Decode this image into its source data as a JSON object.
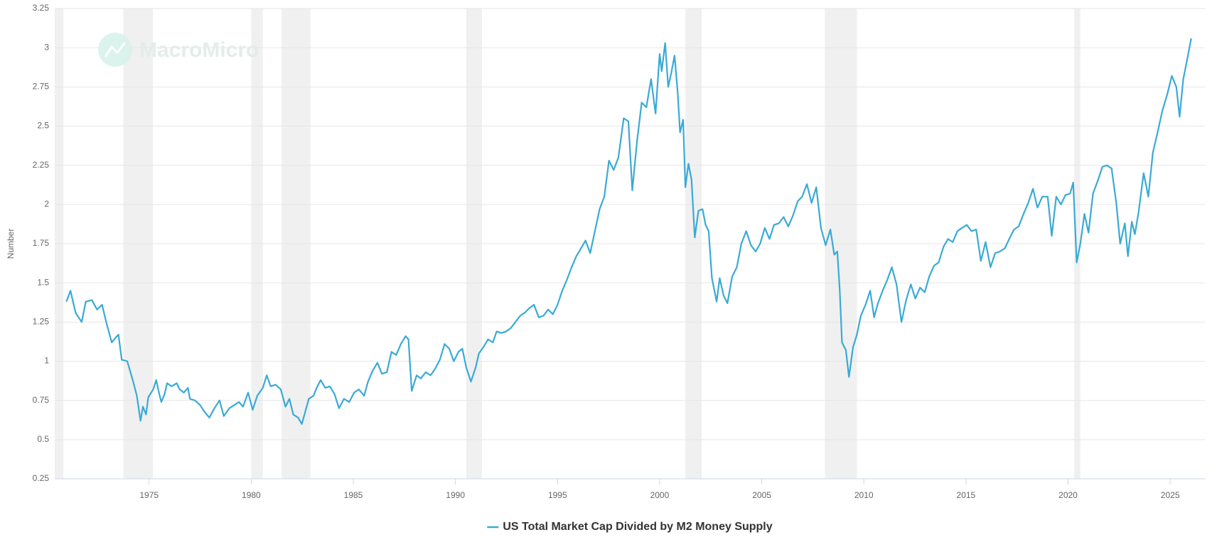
{
  "chart_data": {
    "type": "line",
    "watermark": "MacroMicro",
    "y_label": "Number",
    "x": [
      1970.95,
      1971.15,
      1971.4,
      1971.7,
      1971.9,
      1972.2,
      1972.45,
      1972.7,
      1972.9,
      1973.17,
      1973.36,
      1973.5,
      1973.66,
      1973.93,
      1974.2,
      1974.4,
      1974.58,
      1974.7,
      1974.85,
      1974.96,
      1975.2,
      1975.35,
      1975.5,
      1975.6,
      1975.76,
      1975.88,
      1976.1,
      1976.35,
      1976.5,
      1976.7,
      1976.9,
      1977.0,
      1977.25,
      1977.5,
      1977.7,
      1977.95,
      1978.2,
      1978.45,
      1978.66,
      1978.93,
      1979.16,
      1979.4,
      1979.6,
      1979.85,
      1980.07,
      1980.3,
      1980.57,
      1980.76,
      1980.95,
      1981.2,
      1981.45,
      1981.68,
      1981.87,
      1982.06,
      1982.3,
      1982.48,
      1982.63,
      1982.82,
      1983.05,
      1983.24,
      1983.4,
      1983.63,
      1983.85,
      1984.08,
      1984.3,
      1984.54,
      1984.8,
      1985.04,
      1985.27,
      1985.53,
      1985.72,
      1985.95,
      1986.18,
      1986.4,
      1986.64,
      1986.87,
      1987.1,
      1987.33,
      1987.56,
      1987.7,
      1987.86,
      1988.1,
      1988.3,
      1988.55,
      1988.78,
      1989.0,
      1989.24,
      1989.47,
      1989.7,
      1989.92,
      1990.15,
      1990.34,
      1990.53,
      1990.76,
      1990.99,
      1991.15,
      1991.37,
      1991.6,
      1991.83,
      1992.02,
      1992.25,
      1992.48,
      1992.7,
      1992.94,
      1993.17,
      1993.4,
      1993.63,
      1993.85,
      1994.08,
      1994.31,
      1994.54,
      1994.77,
      1995.0,
      1995.23,
      1995.46,
      1995.69,
      1995.92,
      1996.15,
      1996.37,
      1996.6,
      1996.83,
      1997.06,
      1997.29,
      1997.52,
      1997.75,
      1997.98,
      1998.24,
      1998.47,
      1998.66,
      1998.89,
      1999.12,
      1999.35,
      1999.58,
      1999.8,
      2000.0,
      2000.1,
      2000.27,
      2000.42,
      2000.57,
      2000.73,
      2000.88,
      2001.0,
      2001.15,
      2001.26,
      2001.41,
      2001.56,
      2001.72,
      2001.9,
      2002.1,
      2002.25,
      2002.4,
      2002.56,
      2002.79,
      2002.94,
      2003.13,
      2003.32,
      2003.55,
      2003.78,
      2004.0,
      2004.24,
      2004.47,
      2004.7,
      2004.92,
      2005.15,
      2005.38,
      2005.6,
      2005.84,
      2006.07,
      2006.3,
      2006.53,
      2006.76,
      2006.98,
      2007.21,
      2007.44,
      2007.67,
      2007.9,
      2008.13,
      2008.36,
      2008.55,
      2008.7,
      2008.82,
      2008.93,
      2009.12,
      2009.27,
      2009.47,
      2009.66,
      2009.85,
      2010.08,
      2010.31,
      2010.5,
      2010.69,
      2010.92,
      2011.15,
      2011.37,
      2011.6,
      2011.84,
      2012.07,
      2012.3,
      2012.52,
      2012.75,
      2012.98,
      2013.2,
      2013.44,
      2013.66,
      2013.9,
      2014.12,
      2014.35,
      2014.58,
      2014.8,
      2015.04,
      2015.27,
      2015.5,
      2015.73,
      2015.96,
      2016.2,
      2016.43,
      2016.66,
      2016.9,
      2017.12,
      2017.35,
      2017.58,
      2017.82,
      2018.05,
      2018.28,
      2018.5,
      2018.74,
      2019.0,
      2019.2,
      2019.42,
      2019.65,
      2019.87,
      2020.1,
      2020.25,
      2020.42,
      2020.6,
      2020.8,
      2021.0,
      2021.22,
      2021.45,
      2021.68,
      2021.9,
      2022.13,
      2022.36,
      2022.55,
      2022.78,
      2022.93,
      2023.12,
      2023.27,
      2023.45,
      2023.7,
      2023.93,
      2024.15,
      2024.4,
      2024.62,
      2024.85,
      2025.08,
      2025.3,
      2025.46,
      2025.64,
      2025.84,
      2026.03
    ],
    "series": [
      {
        "name": "US Total Market Cap Divided by M2 Money Supply",
        "color": "#3aaad6",
        "values": [
          1.38,
          1.45,
          1.31,
          1.25,
          1.38,
          1.39,
          1.33,
          1.36,
          1.25,
          1.12,
          1.15,
          1.17,
          1.01,
          1.0,
          0.88,
          0.78,
          0.62,
          0.71,
          0.66,
          0.77,
          0.82,
          0.88,
          0.79,
          0.74,
          0.79,
          0.86,
          0.84,
          0.86,
          0.82,
          0.8,
          0.83,
          0.76,
          0.75,
          0.72,
          0.68,
          0.64,
          0.7,
          0.75,
          0.65,
          0.7,
          0.72,
          0.74,
          0.71,
          0.8,
          0.69,
          0.78,
          0.83,
          0.91,
          0.84,
          0.85,
          0.82,
          0.71,
          0.76,
          0.66,
          0.64,
          0.6,
          0.67,
          0.76,
          0.78,
          0.84,
          0.88,
          0.83,
          0.84,
          0.79,
          0.7,
          0.76,
          0.74,
          0.8,
          0.82,
          0.78,
          0.87,
          0.94,
          0.99,
          0.92,
          0.93,
          1.06,
          1.04,
          1.11,
          1.16,
          1.14,
          0.81,
          0.91,
          0.89,
          0.93,
          0.91,
          0.95,
          1.01,
          1.11,
          1.08,
          1.0,
          1.06,
          1.08,
          0.96,
          0.87,
          0.96,
          1.05,
          1.09,
          1.14,
          1.12,
          1.19,
          1.18,
          1.19,
          1.21,
          1.25,
          1.29,
          1.31,
          1.34,
          1.36,
          1.28,
          1.29,
          1.33,
          1.3,
          1.36,
          1.45,
          1.52,
          1.6,
          1.67,
          1.72,
          1.77,
          1.69,
          1.83,
          1.97,
          2.05,
          2.28,
          2.22,
          2.3,
          2.55,
          2.53,
          2.09,
          2.4,
          2.65,
          2.62,
          2.8,
          2.58,
          2.96,
          2.85,
          3.03,
          2.75,
          2.84,
          2.95,
          2.72,
          2.46,
          2.54,
          2.11,
          2.26,
          2.16,
          1.79,
          1.96,
          1.97,
          1.87,
          1.83,
          1.53,
          1.38,
          1.53,
          1.42,
          1.37,
          1.54,
          1.6,
          1.75,
          1.83,
          1.74,
          1.7,
          1.75,
          1.85,
          1.78,
          1.87,
          1.88,
          1.92,
          1.86,
          1.93,
          2.02,
          2.05,
          2.13,
          2.01,
          2.11,
          1.85,
          1.74,
          1.84,
          1.68,
          1.7,
          1.45,
          1.12,
          1.07,
          0.9,
          1.09,
          1.17,
          1.29,
          1.36,
          1.45,
          1.28,
          1.37,
          1.45,
          1.52,
          1.6,
          1.49,
          1.25,
          1.39,
          1.49,
          1.4,
          1.47,
          1.44,
          1.54,
          1.61,
          1.63,
          1.73,
          1.78,
          1.76,
          1.83,
          1.85,
          1.87,
          1.83,
          1.84,
          1.64,
          1.76,
          1.6,
          1.69,
          1.7,
          1.72,
          1.78,
          1.84,
          1.86,
          1.94,
          2.01,
          2.1,
          1.98,
          2.05,
          2.05,
          1.8,
          2.05,
          2.0,
          2.06,
          2.07,
          2.14,
          1.63,
          1.75,
          1.94,
          1.82,
          2.07,
          2.15,
          2.24,
          2.25,
          2.23,
          2.01,
          1.75,
          1.88,
          1.67,
          1.89,
          1.81,
          1.95,
          2.2,
          2.05,
          2.33,
          2.47,
          2.6,
          2.7,
          2.82,
          2.75,
          2.56,
          2.8,
          2.93,
          3.06
        ]
      }
    ],
    "shaded_periods": [
      [
        1969.9,
        1970.8
      ],
      [
        1973.74,
        1975.19
      ],
      [
        1980.0,
        1980.57
      ],
      [
        1981.49,
        1982.9
      ],
      [
        1990.53,
        1991.3
      ],
      [
        2001.26,
        2002.06
      ],
      [
        2008.09,
        2009.66
      ],
      [
        2020.3,
        2020.6
      ]
    ],
    "shade_color": "#f0f0f0",
    "xlim": [
      1970.38,
      2026.7
    ],
    "xticks": [
      1975,
      1980,
      1985,
      1990,
      1995,
      2000,
      2005,
      2010,
      2015,
      2020,
      2025
    ],
    "ylim": [
      0.25,
      3.25
    ],
    "yticks": [
      0.25,
      0.5,
      0.75,
      1,
      1.25,
      1.5,
      1.75,
      2,
      2.25,
      2.5,
      2.75,
      3,
      3.25
    ],
    "grid": true,
    "legend": "bottom"
  }
}
